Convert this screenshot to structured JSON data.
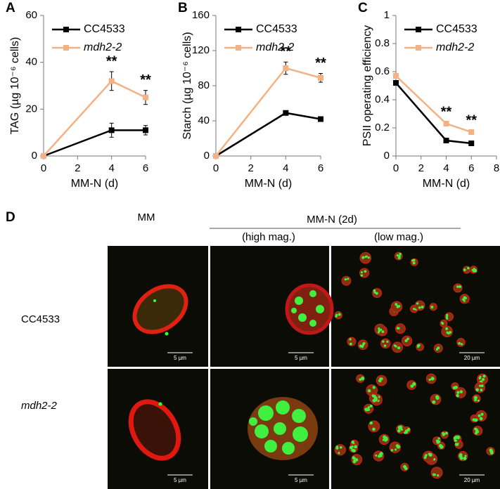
{
  "chart_data": [
    {
      "type": "line",
      "panel": "A",
      "ylabel": "TAG (µg 10⁻⁶ cells)",
      "xlabel": "MM-N (d)",
      "x": [
        0,
        4,
        6
      ],
      "xlim": [
        0,
        6
      ],
      "xticks": [
        0,
        2,
        4,
        6
      ],
      "ylim": [
        0,
        60
      ],
      "yticks": [
        0,
        20,
        40,
        60
      ],
      "legend": "upper left",
      "series": [
        {
          "name": "CC4533",
          "color": "#000000",
          "values": [
            0,
            11,
            11
          ],
          "errors": [
            0,
            3,
            2
          ]
        },
        {
          "name": "mdh2-2",
          "color": "#f4b183",
          "italic": true,
          "values": [
            0,
            32,
            25
          ],
          "errors": [
            0,
            4,
            3
          ]
        }
      ],
      "annotations": [
        {
          "x": 4,
          "text": "**"
        },
        {
          "x": 6,
          "text": "**"
        }
      ]
    },
    {
      "type": "line",
      "panel": "B",
      "ylabel": "Starch (µg 10⁻⁶ cells)",
      "xlabel": "MM-N (d)",
      "x": [
        0,
        4,
        6
      ],
      "xlim": [
        0,
        6
      ],
      "xticks": [
        0,
        2,
        4,
        6
      ],
      "ylim": [
        0,
        160
      ],
      "yticks": [
        0,
        40,
        80,
        120,
        160
      ],
      "legend": "upper left",
      "series": [
        {
          "name": "CC4533",
          "color": "#000000",
          "values": [
            0,
            49,
            42
          ],
          "errors": [
            0,
            1,
            2
          ]
        },
        {
          "name": "mdh2-2",
          "color": "#f4b183",
          "italic": true,
          "values": [
            0,
            100,
            89
          ],
          "errors": [
            0,
            7,
            5
          ]
        }
      ],
      "annotations": [
        {
          "x": 4,
          "text": "**"
        },
        {
          "x": 6,
          "text": "**"
        }
      ]
    },
    {
      "type": "line",
      "panel": "C",
      "ylabel": "PSII operating efficiency",
      "xlabel": "MM-N (d)",
      "x": [
        0,
        4,
        6
      ],
      "xlim": [
        0,
        8
      ],
      "xticks": [
        0,
        2,
        4,
        6,
        8
      ],
      "ylim": [
        0,
        1
      ],
      "yticks": [
        0,
        0.2,
        0.4,
        0.6,
        0.8,
        1
      ],
      "legend": "upper left",
      "series": [
        {
          "name": "CC4533",
          "color": "#000000",
          "values": [
            0.52,
            0.11,
            0.09
          ],
          "errors": [
            0.01,
            0.01,
            0.01
          ]
        },
        {
          "name": "mdh2-2",
          "color": "#f4b183",
          "italic": true,
          "values": [
            0.57,
            0.23,
            0.17
          ],
          "errors": [
            0.01,
            0.01,
            0.01
          ]
        }
      ],
      "annotations": [
        {
          "x": 4,
          "text": "**"
        },
        {
          "x": 6,
          "text": "**"
        }
      ]
    }
  ],
  "panel_d": {
    "label": "D",
    "columns": [
      "MM",
      "MM-N (2d)"
    ],
    "subcolumns": [
      "(high mag.)",
      "(low mag.)"
    ],
    "rows": [
      "CC4533",
      "mdh2-2"
    ],
    "scale_bars": [
      [
        "5 µm",
        "5 µm",
        "20 µm"
      ],
      [
        "5 µm",
        "5 µm",
        "20 µm"
      ]
    ]
  }
}
